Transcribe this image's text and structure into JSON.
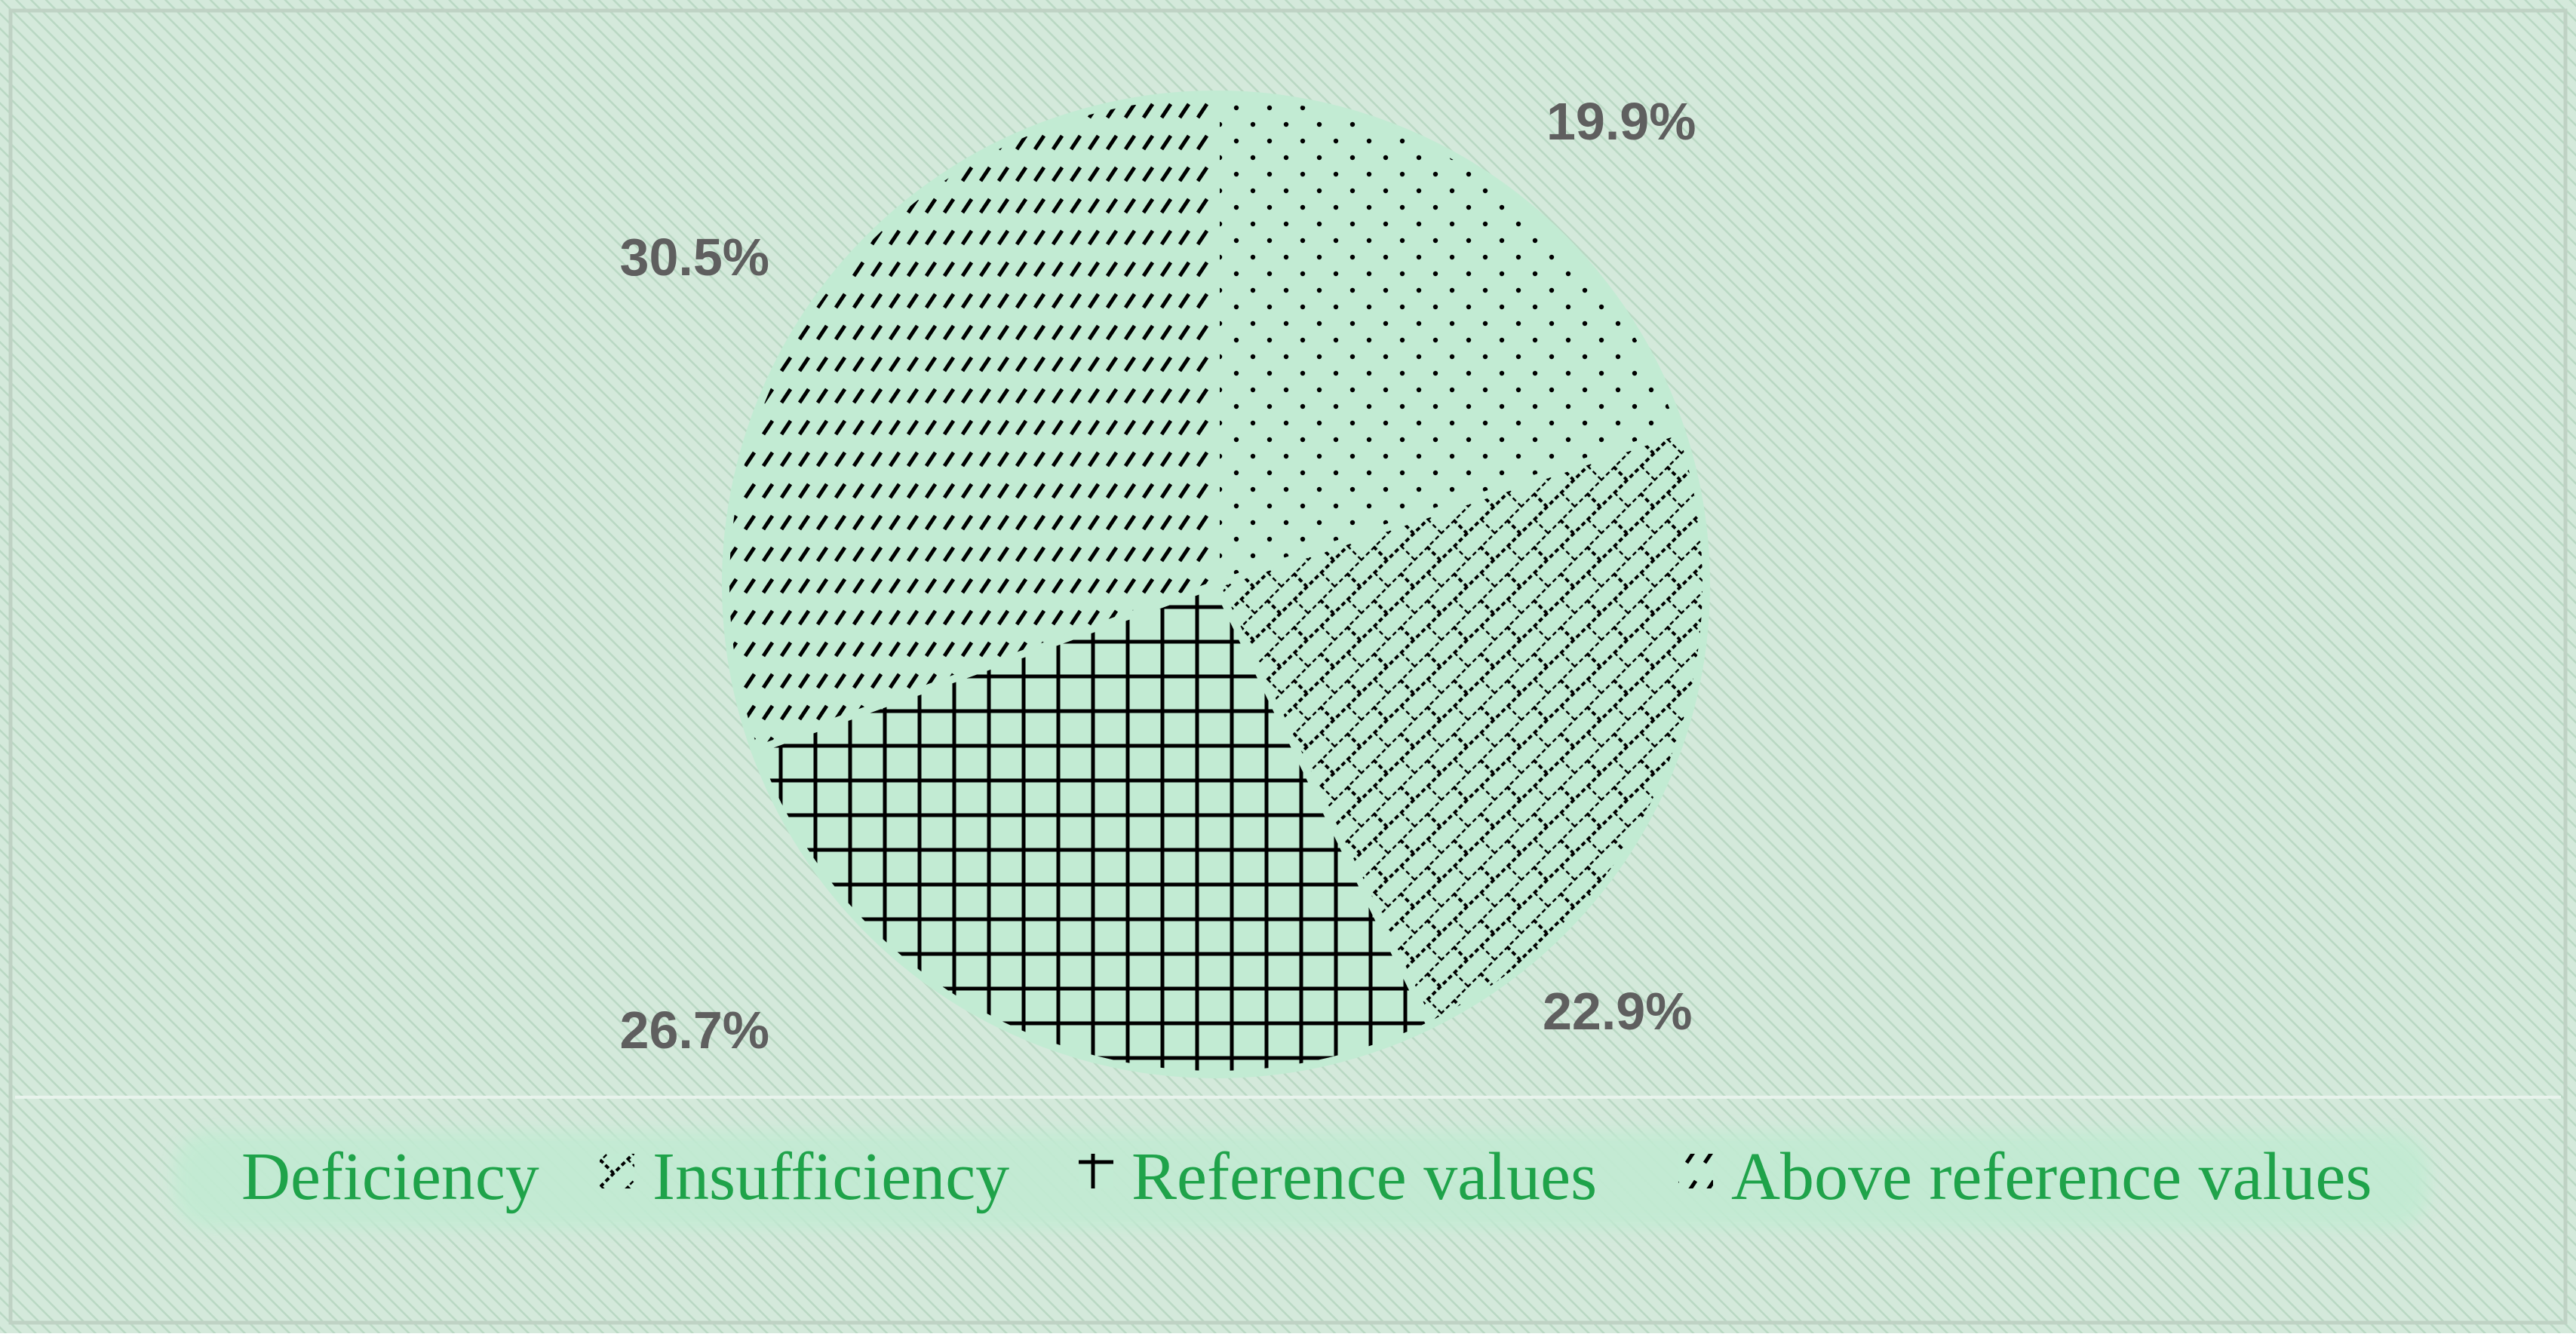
{
  "chart_data": {
    "type": "pie",
    "title": "",
    "slices": [
      {
        "name": "Deficiency",
        "value": 19.9,
        "label": "19.9%",
        "pattern": "dots"
      },
      {
        "name": "Insufficiency",
        "value": 22.9,
        "label": "22.9%",
        "pattern": "brick"
      },
      {
        "name": "Reference values",
        "value": 26.7,
        "label": "26.7%",
        "pattern": "grid"
      },
      {
        "name": "Above reference values",
        "value": 30.5,
        "label": "30.5%",
        "pattern": "dashes"
      }
    ],
    "start_angle_deg": 0,
    "direction": "clockwise",
    "legend_position": "bottom",
    "colors": {
      "background": "#cfe6d7",
      "slice_fill": "#c2ebd3",
      "legend_text": "#1fa34a",
      "label_text": "#5f5f5f",
      "pattern_ink": "#000000"
    }
  }
}
